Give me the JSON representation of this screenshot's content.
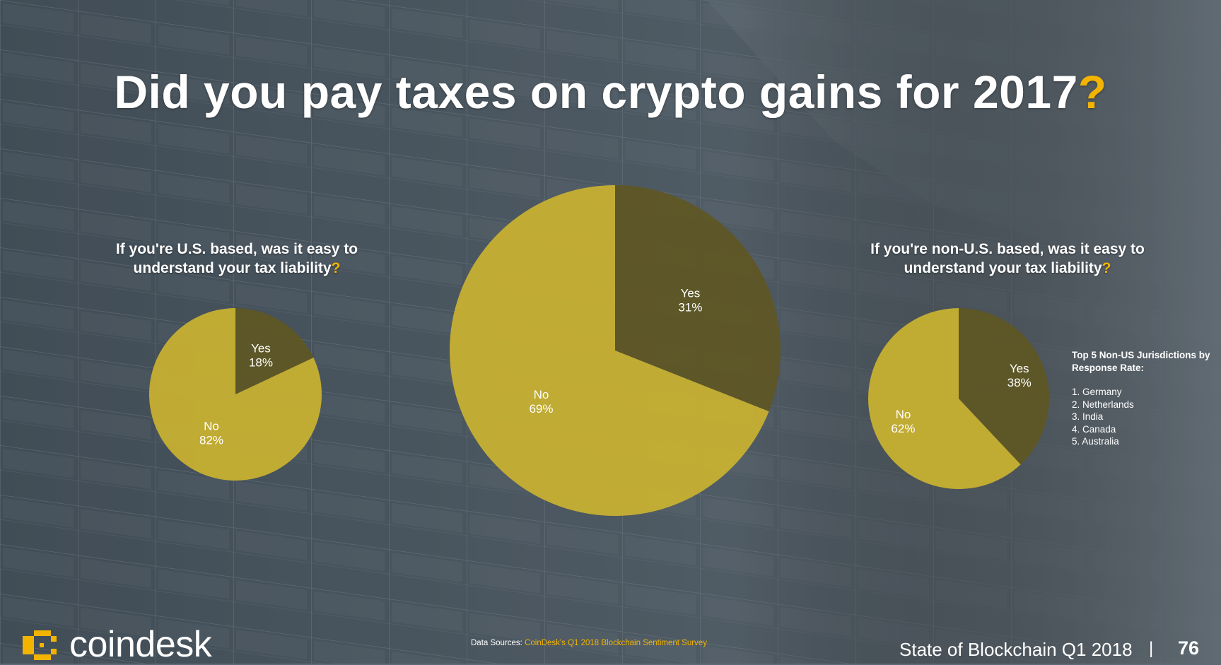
{
  "title": {
    "text": "Did you pay taxes on crypto gains for 2017",
    "mark": "?"
  },
  "colors": {
    "accent": "#f2b400",
    "pie_yellow": "#c9b230",
    "pie_olive": "#5f5624"
  },
  "chart_data": [
    {
      "type": "pie",
      "title": "If you're U.S. based, was it easy to understand your tax liability",
      "title_mark": "?",
      "labels": [
        "Yes",
        "No"
      ],
      "values": [
        18,
        82
      ],
      "value_labels": [
        "18%",
        "82%"
      ]
    },
    {
      "type": "pie",
      "title": "Did you pay taxes on crypto gains for 2017?",
      "labels": [
        "Yes",
        "No"
      ],
      "values": [
        31,
        69
      ],
      "value_labels": [
        "31%",
        "69%"
      ]
    },
    {
      "type": "pie",
      "title": "If you're non-U.S. based, was it easy to understand your tax liability",
      "title_mark": "?",
      "labels": [
        "Yes",
        "No"
      ],
      "values": [
        38,
        62
      ],
      "value_labels": [
        "38%",
        "62%"
      ]
    }
  ],
  "jurisdictions": {
    "title": "Top 5 Non-US Jurisdictions by Response Rate:",
    "items": [
      "1. Germany",
      "2. Netherlands",
      "3. India",
      "4. Canada",
      "5. Australia"
    ]
  },
  "footer": {
    "brand": "coindesk",
    "source_prefix": "Data Sources:",
    "source_link": "CoinDesk's Q1 2018 Blockchain Sentiment Survey",
    "report_title": "State of Blockchain Q1 2018",
    "separator": "|",
    "page_number": "76"
  }
}
